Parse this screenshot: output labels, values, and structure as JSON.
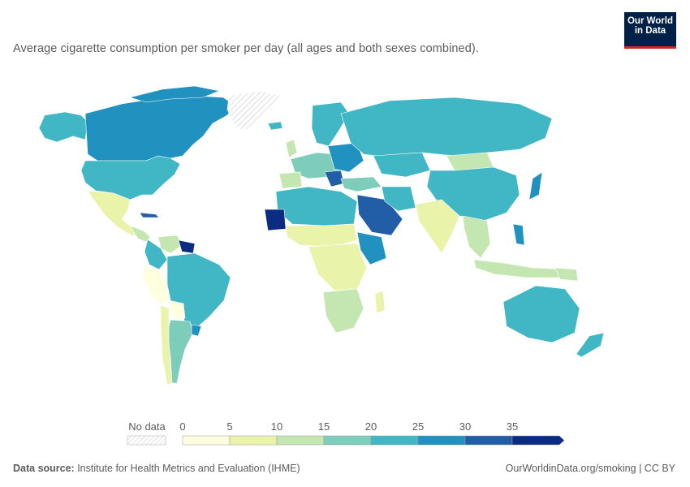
{
  "subtitle": "Average cigarette consumption per smoker per day (all ages and both sexes combined).",
  "logo": {
    "line1": "Our World",
    "line2": "in Data"
  },
  "legend": {
    "no_data_label": "No data",
    "ticks": [
      "0",
      "5",
      "10",
      "15",
      "20",
      "25",
      "30",
      "35"
    ],
    "bins": [
      {
        "from": 0,
        "to": 5,
        "color": "#ffffe0"
      },
      {
        "from": 5,
        "to": 10,
        "color": "#e9f3a9"
      },
      {
        "from": 10,
        "to": 15,
        "color": "#c4e6b1"
      },
      {
        "from": 15,
        "to": 20,
        "color": "#7ecdbb"
      },
      {
        "from": 20,
        "to": 25,
        "color": "#41b6c4"
      },
      {
        "from": 25,
        "to": 30,
        "color": "#2192c0"
      },
      {
        "from": 30,
        "to": 35,
        "color": "#225ea8"
      },
      {
        "from": 35,
        "to": 40,
        "color": "#0c2c84"
      }
    ],
    "no_data_color": "#eeeeee"
  },
  "footer": {
    "source_label": "Data source:",
    "source_text": " Institute for Health Metrics and Evaluation (IHME)",
    "link_text": "OurWorldinData.org/smoking",
    "license_text": " | CC BY"
  },
  "colors": {
    "text": "#5b5b5b",
    "logo_bg": "#002147",
    "logo_accent": "#ce261e"
  }
}
